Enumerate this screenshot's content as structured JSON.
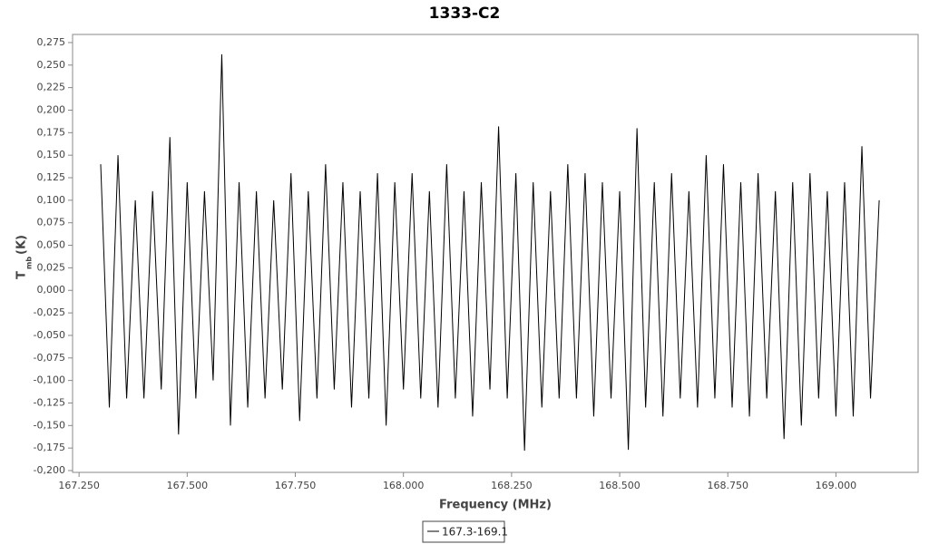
{
  "chart_data": {
    "type": "line",
    "title": "1333-C2",
    "x_label": "Frequency (MHz)",
    "y_label": "T",
    "y_label_sub": "mb",
    "y_label_unit": "(K)",
    "x": [
      167.3,
      167.32,
      167.34,
      167.36,
      167.38,
      167.4,
      167.42,
      167.44,
      167.46,
      167.48,
      167.5,
      167.52,
      167.54,
      167.56,
      167.58,
      167.6,
      167.62,
      167.64,
      167.66,
      167.68,
      167.7,
      167.72,
      167.74,
      167.76,
      167.78,
      167.8,
      167.82,
      167.84,
      167.86,
      167.88,
      167.9,
      167.92,
      167.94,
      167.96,
      167.98,
      168.0,
      168.02,
      168.04,
      168.06,
      168.08,
      168.1,
      168.12,
      168.14,
      168.16,
      168.18,
      168.2,
      168.22,
      168.24,
      168.26,
      168.28,
      168.3,
      168.32,
      168.34,
      168.36,
      168.38,
      168.4,
      168.42,
      168.44,
      168.46,
      168.48,
      168.5,
      168.52,
      168.54,
      168.56,
      168.58,
      168.6,
      168.62,
      168.64,
      168.66,
      168.68,
      168.7,
      168.72,
      168.74,
      168.76,
      168.78,
      168.8,
      168.82,
      168.84,
      168.86,
      168.88,
      168.9,
      168.92,
      168.94,
      168.96,
      168.98,
      169.0,
      169.02,
      169.04,
      169.06,
      169.08,
      169.1
    ],
    "series": [
      {
        "name": "167.3-169.1",
        "color": "#000000",
        "values": [
          0.14,
          -0.13,
          0.15,
          -0.12,
          0.1,
          -0.12,
          0.11,
          -0.11,
          0.17,
          -0.16,
          0.12,
          -0.12,
          0.11,
          -0.1,
          0.262,
          -0.15,
          0.12,
          -0.13,
          0.11,
          -0.12,
          0.1,
          -0.11,
          0.13,
          -0.145,
          0.11,
          -0.12,
          0.14,
          -0.11,
          0.12,
          -0.13,
          0.11,
          -0.12,
          0.13,
          -0.15,
          0.12,
          -0.11,
          0.13,
          -0.12,
          0.11,
          -0.13,
          0.14,
          -0.12,
          0.11,
          -0.14,
          0.12,
          -0.11,
          0.182,
          -0.12,
          0.13,
          -0.178,
          0.12,
          -0.13,
          0.11,
          -0.12,
          0.14,
          -0.12,
          0.13,
          -0.14,
          0.12,
          -0.12,
          0.11,
          -0.177,
          0.18,
          -0.13,
          0.12,
          -0.14,
          0.13,
          -0.12,
          0.11,
          -0.13,
          0.15,
          -0.12,
          0.14,
          -0.13,
          0.12,
          -0.14,
          0.13,
          -0.12,
          0.11,
          -0.165,
          0.12,
          -0.15,
          0.13,
          -0.12,
          0.11,
          -0.14,
          0.12,
          -0.14,
          0.16,
          -0.12,
          0.1
        ]
      }
    ],
    "xlim": [
      167.235,
      169.19
    ],
    "ylim": [
      -0.202,
      0.284
    ],
    "xticks": [
      {
        "value": 167.25,
        "label": "167.250"
      },
      {
        "value": 167.5,
        "label": "167.500"
      },
      {
        "value": 167.75,
        "label": "167.750"
      },
      {
        "value": 168,
        "label": "168.000"
      },
      {
        "value": 168.25,
        "label": "168.250"
      },
      {
        "value": 168.5,
        "label": "168.500"
      },
      {
        "value": 168.75,
        "label": "168.750"
      },
      {
        "value": 169,
        "label": "169.000"
      }
    ],
    "yticks": [
      {
        "value": -0.2,
        "label": "-0,200"
      },
      {
        "value": -0.175,
        "label": "-0,175"
      },
      {
        "value": -0.15,
        "label": "-0,150"
      },
      {
        "value": -0.125,
        "label": "-0,125"
      },
      {
        "value": -0.1,
        "label": "-0,100"
      },
      {
        "value": -0.075,
        "label": "-0,075"
      },
      {
        "value": -0.05,
        "label": "-0,050"
      },
      {
        "value": -0.025,
        "label": "-0,025"
      },
      {
        "value": 0,
        "label": "0,000"
      },
      {
        "value": 0.025,
        "label": "0,025"
      },
      {
        "value": 0.05,
        "label": "0,050"
      },
      {
        "value": 0.075,
        "label": "0,075"
      },
      {
        "value": 0.1,
        "label": "0,100"
      },
      {
        "value": 0.125,
        "label": "0,125"
      },
      {
        "value": 0.15,
        "label": "0,150"
      },
      {
        "value": 0.175,
        "label": "0,175"
      },
      {
        "value": 0.2,
        "label": "0,200"
      },
      {
        "value": 0.225,
        "label": "0,225"
      },
      {
        "value": 0.25,
        "label": "0,250"
      },
      {
        "value": 0.275,
        "label": "0,275"
      }
    ],
    "grid": false,
    "legend": "bottom"
  }
}
